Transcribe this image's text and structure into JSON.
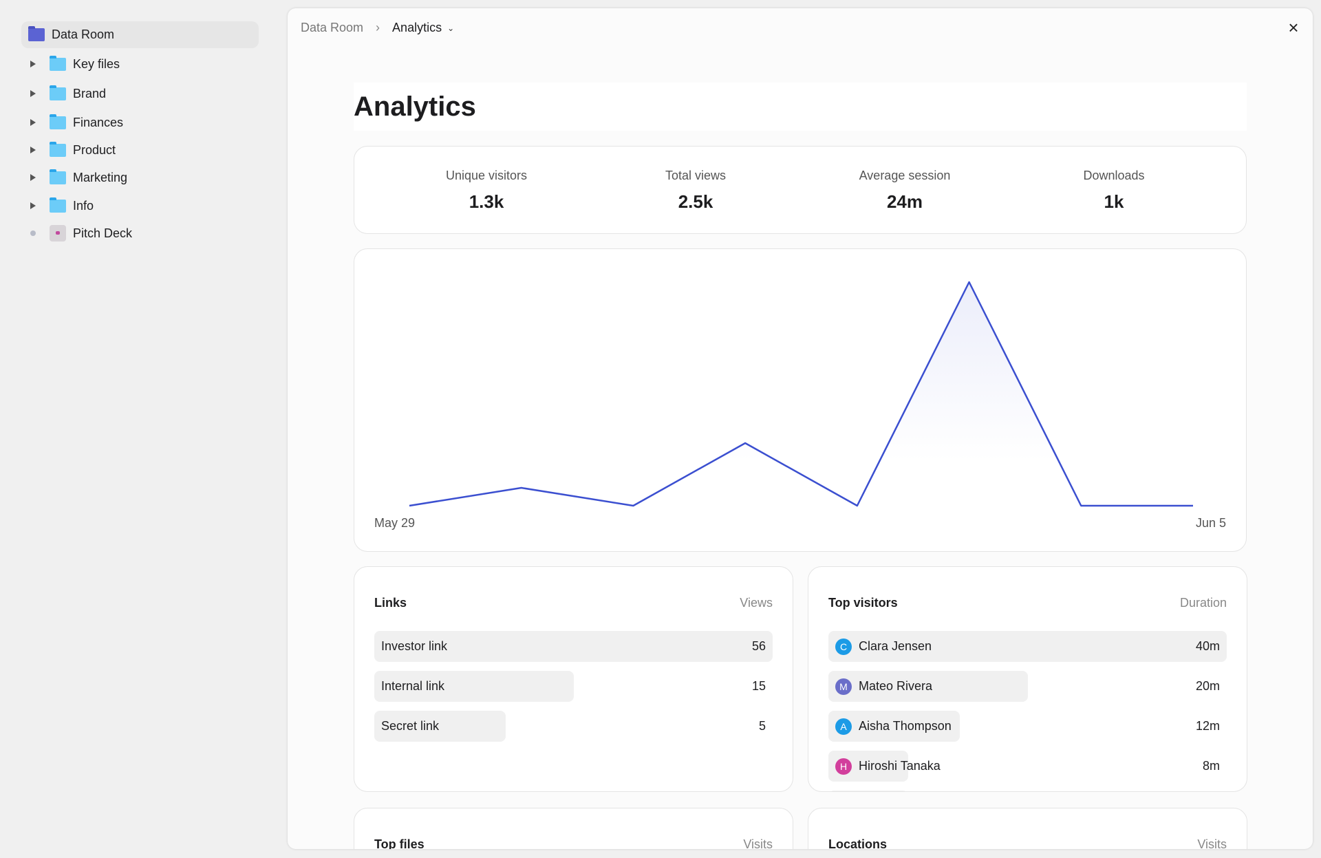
{
  "sidebar": {
    "root": "Data Room",
    "items": [
      {
        "label": "Key files",
        "type": "folder"
      },
      {
        "label": "Brand",
        "type": "folder"
      },
      {
        "label": "Finances",
        "type": "folder"
      },
      {
        "label": "Product",
        "type": "folder"
      },
      {
        "label": "Marketing",
        "type": "folder"
      },
      {
        "label": "Info",
        "type": "folder"
      },
      {
        "label": "Pitch Deck",
        "type": "file"
      }
    ]
  },
  "breadcrumb": {
    "parent": "Data Room",
    "current": "Analytics"
  },
  "page_title": "Analytics",
  "stats": [
    {
      "label": "Unique visitors",
      "value": "1.3k"
    },
    {
      "label": "Total views",
      "value": "2.5k"
    },
    {
      "label": "Average session",
      "value": "24m"
    },
    {
      "label": "Downloads",
      "value": "1k"
    }
  ],
  "chart_data": {
    "type": "area",
    "x_start_label": "May 29",
    "x_end_label": "Jun 5",
    "values": [
      0,
      8,
      0,
      28,
      0,
      100,
      0,
      0
    ],
    "color": "#3b4fd0"
  },
  "links": {
    "title": "Links",
    "column": "Views",
    "rows": [
      {
        "name": "Investor link",
        "value": "56",
        "fill": 1
      },
      {
        "name": "Internal link",
        "value": "15",
        "fill": 0.5
      },
      {
        "name": "Secret link",
        "value": "5",
        "fill": 0.33
      }
    ]
  },
  "visitors": {
    "title": "Top visitors",
    "column": "Duration",
    "rows": [
      {
        "initial": "C",
        "name": "Clara Jensen",
        "value": "40m",
        "color": "#1c9be6",
        "fill": 1
      },
      {
        "initial": "M",
        "name": "Mateo Rivera",
        "value": "20m",
        "color": "#6a6ec9",
        "fill": 0.5
      },
      {
        "initial": "A",
        "name": "Aisha Thompson",
        "value": "12m",
        "color": "#1c9be6",
        "fill": 0.33
      },
      {
        "initial": "H",
        "name": "Hiroshi Tanaka",
        "value": "8m",
        "color": "#d23f9c",
        "fill": 0.2
      }
    ]
  },
  "top_files": {
    "title": "Top files",
    "column": "Visits"
  },
  "locations": {
    "title": "Locations",
    "column": "Visits"
  }
}
